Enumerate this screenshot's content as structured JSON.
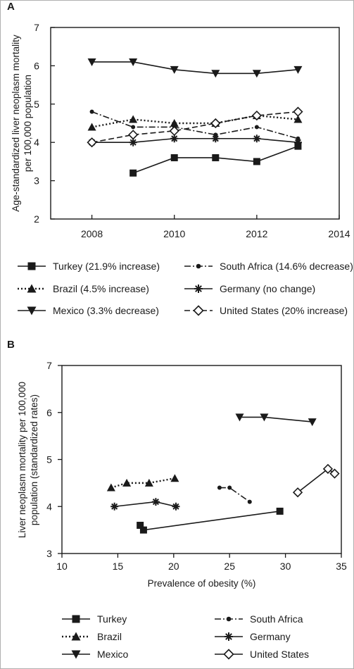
{
  "chart_data": [
    {
      "panel": "A",
      "type": "line",
      "xlabel": "",
      "ylabel": "Age-standardized liver neoplasm mortality per 100,000 population",
      "xlim": [
        2007,
        2014
      ],
      "ylim": [
        2,
        7
      ],
      "xticks": [
        2008,
        2010,
        2012,
        2014
      ],
      "yticks": [
        2,
        3,
        4,
        5,
        6,
        7
      ],
      "grid": false,
      "legend_position": "bottom",
      "series": [
        {
          "name": "Turkey (21.9% increase)",
          "marker": "square",
          "line": "solid",
          "x": [
            2009,
            2010,
            2011,
            2012,
            2013
          ],
          "y": [
            3.2,
            3.6,
            3.6,
            3.5,
            3.9
          ]
        },
        {
          "name": "South Africa (14.6% decrease)",
          "marker": "circle",
          "line": "dashdot",
          "x": [
            2008,
            2009,
            2010,
            2011,
            2012,
            2013
          ],
          "y": [
            4.8,
            4.4,
            4.4,
            4.2,
            4.4,
            4.1
          ]
        },
        {
          "name": "Brazil (4.5% increase)",
          "marker": "triangle",
          "line": "dotted",
          "x": [
            2008,
            2009,
            2010,
            2011,
            2012,
            2013
          ],
          "y": [
            4.4,
            4.6,
            4.5,
            4.5,
            4.7,
            4.6
          ]
        },
        {
          "name": "Germany (no change)",
          "marker": "asterisk",
          "line": "solid",
          "x": [
            2008,
            2009,
            2010,
            2011,
            2012,
            2013
          ],
          "y": [
            4.0,
            4.0,
            4.1,
            4.1,
            4.1,
            4.0
          ]
        },
        {
          "name": "Mexico (3.3% decrease)",
          "marker": "triangle-down",
          "line": "solid",
          "x": [
            2008,
            2009,
            2010,
            2011,
            2012,
            2013
          ],
          "y": [
            6.1,
            6.1,
            5.9,
            5.8,
            5.8,
            5.9
          ]
        },
        {
          "name": "United States (20% increase)",
          "marker": "diamond",
          "line": "dashed",
          "x": [
            2008,
            2009,
            2010,
            2011,
            2012,
            2013
          ],
          "y": [
            4.0,
            4.2,
            4.3,
            4.5,
            4.7,
            4.8
          ]
        }
      ]
    },
    {
      "panel": "B",
      "type": "line",
      "xlabel": "Prevalence of obesity (%)",
      "ylabel": "Liver neoplasm mortality per 100,000 population (standardized rates)",
      "xlim": [
        10,
        35
      ],
      "ylim": [
        3,
        7
      ],
      "xticks": [
        10,
        15,
        20,
        25,
        30,
        35
      ],
      "yticks": [
        3,
        4,
        5,
        6,
        7
      ],
      "grid": false,
      "legend_position": "bottom",
      "series": [
        {
          "name": "Turkey",
          "marker": "square",
          "line": "solid",
          "x": [
            17.0,
            17.3,
            29.5
          ],
          "y": [
            3.6,
            3.5,
            3.9
          ]
        },
        {
          "name": "South Africa",
          "marker": "circle",
          "line": "dashdot",
          "x": [
            24.1,
            25.0,
            26.8
          ],
          "y": [
            4.4,
            4.4,
            4.1
          ]
        },
        {
          "name": "Brazil",
          "marker": "triangle",
          "line": "dotted",
          "x": [
            14.4,
            15.8,
            17.8,
            20.1
          ],
          "y": [
            4.4,
            4.5,
            4.5,
            4.6
          ]
        },
        {
          "name": "Germany",
          "marker": "asterisk",
          "line": "solid",
          "x": [
            14.7,
            18.4,
            20.2
          ],
          "y": [
            4.0,
            4.1,
            4.0
          ]
        },
        {
          "name": "Mexico",
          "marker": "triangle-down",
          "line": "solid",
          "x": [
            25.9,
            28.1,
            32.4
          ],
          "y": [
            5.9,
            5.9,
            5.8
          ]
        },
        {
          "name": "United States",
          "marker": "diamond",
          "line": "solid",
          "x": [
            31.1,
            33.8,
            34.4
          ],
          "y": [
            4.3,
            4.8,
            4.7
          ]
        }
      ]
    }
  ]
}
